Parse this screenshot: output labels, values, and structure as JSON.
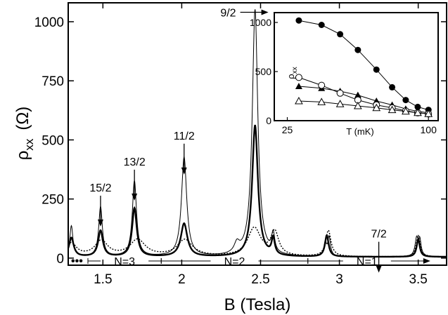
{
  "chart_data": [
    {
      "type": "line",
      "title": "",
      "xlabel": "B  (Tesla)",
      "ylabel_main": "ρ",
      "ylabel_sub": "xx",
      "ylabel_unit": "(Ω)",
      "xlim": [
        1.28,
        3.68
      ],
      "ylim": [
        -30,
        1080
      ],
      "x_ticks": [
        1.5,
        2,
        2.5,
        3,
        3.5
      ],
      "x_tick_labels": [
        "1.5",
        "2",
        "2.5",
        "3",
        "3.5"
      ],
      "y_ticks": [
        0,
        250,
        500,
        750,
        1000
      ],
      "y_tick_labels": [
        "0",
        "250",
        "500",
        "750",
        "1000"
      ],
      "grid": false,
      "peaks_thin": [
        {
          "x": 1.3,
          "y": 130,
          "w": 0.012
        },
        {
          "x": 1.485,
          "y": 210,
          "w": 0.014
        },
        {
          "x": 1.7,
          "y": 320,
          "w": 0.016
        },
        {
          "x": 2.015,
          "y": 420,
          "w": 0.02
        },
        {
          "x": 2.35,
          "y": 40,
          "w": 0.02
        },
        {
          "x": 2.465,
          "y": 1045,
          "w": 0.021
        },
        {
          "x": 2.58,
          "y": 80,
          "w": 0.012
        },
        {
          "x": 2.91,
          "y": 55,
          "w": 0.01
        },
        {
          "x": 2.935,
          "y": 80,
          "w": 0.01
        },
        {
          "x": 3.49,
          "y": 75,
          "w": 0.012
        },
        {
          "x": 3.51,
          "y": 65,
          "w": 0.01
        }
      ],
      "peaks_thick": [
        {
          "x": 1.3,
          "y": 80,
          "w": 0.018
        },
        {
          "x": 1.485,
          "y": 110,
          "w": 0.018
        },
        {
          "x": 1.7,
          "y": 205,
          "w": 0.018
        },
        {
          "x": 2.015,
          "y": 140,
          "w": 0.025
        },
        {
          "x": 2.465,
          "y": 555,
          "w": 0.022
        },
        {
          "x": 2.58,
          "y": 70,
          "w": 0.012
        },
        {
          "x": 2.92,
          "y": 90,
          "w": 0.014
        },
        {
          "x": 3.5,
          "y": 75,
          "w": 0.012
        }
      ],
      "peaks_dotted": [
        {
          "x": 1.3,
          "y": 55,
          "w": 0.04
        },
        {
          "x": 1.49,
          "y": 65,
          "w": 0.05
        },
        {
          "x": 1.72,
          "y": 70,
          "w": 0.06
        },
        {
          "x": 2.02,
          "y": 70,
          "w": 0.06
        },
        {
          "x": 2.46,
          "y": 120,
          "w": 0.05
        },
        {
          "x": 2.59,
          "y": 100,
          "w": 0.03
        },
        {
          "x": 2.93,
          "y": 110,
          "w": 0.02
        },
        {
          "x": 3.5,
          "y": 90,
          "w": 0.015
        }
      ],
      "annotations": [
        {
          "text": "15/2",
          "x": 1.485,
          "y": 270
        },
        {
          "text": "13/2",
          "x": 1.7,
          "y": 380
        },
        {
          "text": "11/2",
          "x": 2.015,
          "y": 490
        },
        {
          "text": "9/2",
          "x": 2.38,
          "y": 1040
        },
        {
          "text": "7/2",
          "x": 3.25,
          "y": 75
        }
      ],
      "bands": [
        {
          "label": "N=3",
          "from": 1.28,
          "to": 1.87
        },
        {
          "label": "N=2",
          "from": 1.87,
          "to": 2.8
        },
        {
          "label": "N=1",
          "from": 2.8,
          "to": 3.55
        }
      ],
      "band_ellipsis": "•••"
    },
    {
      "type": "scatter",
      "title": "",
      "xlabel": "T  (mK)",
      "ylabel_main": "ρ",
      "ylabel_sub": "xx",
      "xscale": "log",
      "xlim": [
        22,
        110
      ],
      "ylim": [
        0,
        1100
      ],
      "x_ticks": [
        25,
        100
      ],
      "x_tick_labels": [
        "25",
        "100"
      ],
      "y_ticks": [
        0,
        500,
        1000
      ],
      "y_tick_labels": [
        "0",
        "500",
        "1000"
      ],
      "series": [
        {
          "marker": "filled-circle",
          "x": [
            28,
            35,
            42,
            50,
            60,
            70,
            80,
            90,
            100
          ],
          "y": [
            1020,
            975,
            880,
            720,
            520,
            340,
            210,
            140,
            110
          ]
        },
        {
          "marker": "filled-triangle",
          "x": [
            28,
            35,
            42,
            50,
            60,
            70,
            80,
            90,
            100
          ],
          "y": [
            350,
            330,
            300,
            260,
            200,
            160,
            120,
            95,
            80
          ]
        },
        {
          "marker": "open-circle",
          "x": [
            28,
            35,
            42,
            50,
            60,
            70,
            80,
            90,
            100
          ],
          "y": [
            440,
            360,
            280,
            210,
            160,
            130,
            100,
            80,
            70
          ]
        },
        {
          "marker": "open-triangle",
          "x": [
            28,
            35,
            42,
            50,
            60,
            70,
            80,
            90,
            100
          ],
          "y": [
            200,
            190,
            170,
            150,
            130,
            110,
            95,
            80,
            70
          ]
        }
      ]
    }
  ]
}
